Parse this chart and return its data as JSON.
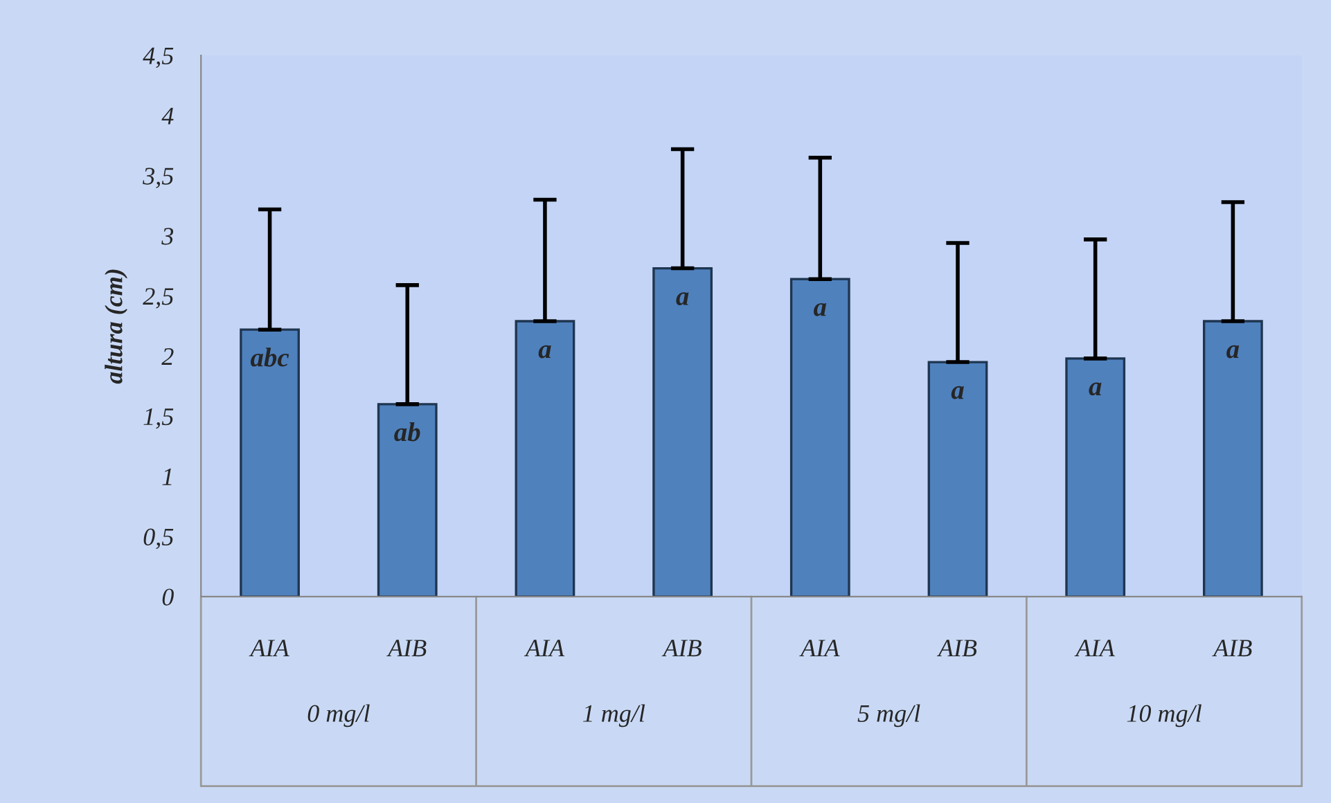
{
  "chart_data": {
    "type": "bar",
    "ylabel": "altura (cm)",
    "categories": [
      "AIA",
      "AIB",
      "AIA",
      "AIB",
      "AIA",
      "AIB",
      "AIA",
      "AIB"
    ],
    "values": [
      2.22,
      1.6,
      2.29,
      2.73,
      2.64,
      1.95,
      1.98,
      2.29
    ],
    "errors": [
      [
        2.22,
        3.22
      ],
      [
        1.6,
        2.59
      ],
      [
        2.29,
        3.3
      ],
      [
        2.73,
        3.72
      ],
      [
        2.64,
        3.65
      ],
      [
        1.95,
        2.94
      ],
      [
        1.98,
        2.97
      ],
      [
        2.29,
        3.28
      ]
    ],
    "color": "#4f81bd",
    "ylim": [
      0,
      4.5
    ],
    "yticks": [
      0,
      {
        "value": 0.5,
        "label": "0,5"
      },
      1,
      {
        "value": 1.5,
        "label": "1,5"
      },
      2,
      {
        "value": 2.5,
        "label": "2,5"
      },
      3,
      {
        "value": 3.5,
        "label": "3,5"
      },
      4,
      {
        "value": 4.5,
        "label": "4,5"
      }
    ],
    "annotations": [
      "abc",
      "ab",
      "a",
      "a",
      "a",
      "a",
      "a",
      "a",
      "0 mg/l",
      "1 mg/l",
      "5 mg/l",
      "10 mg/l"
    ],
    "grid": false,
    "legend": false
  }
}
